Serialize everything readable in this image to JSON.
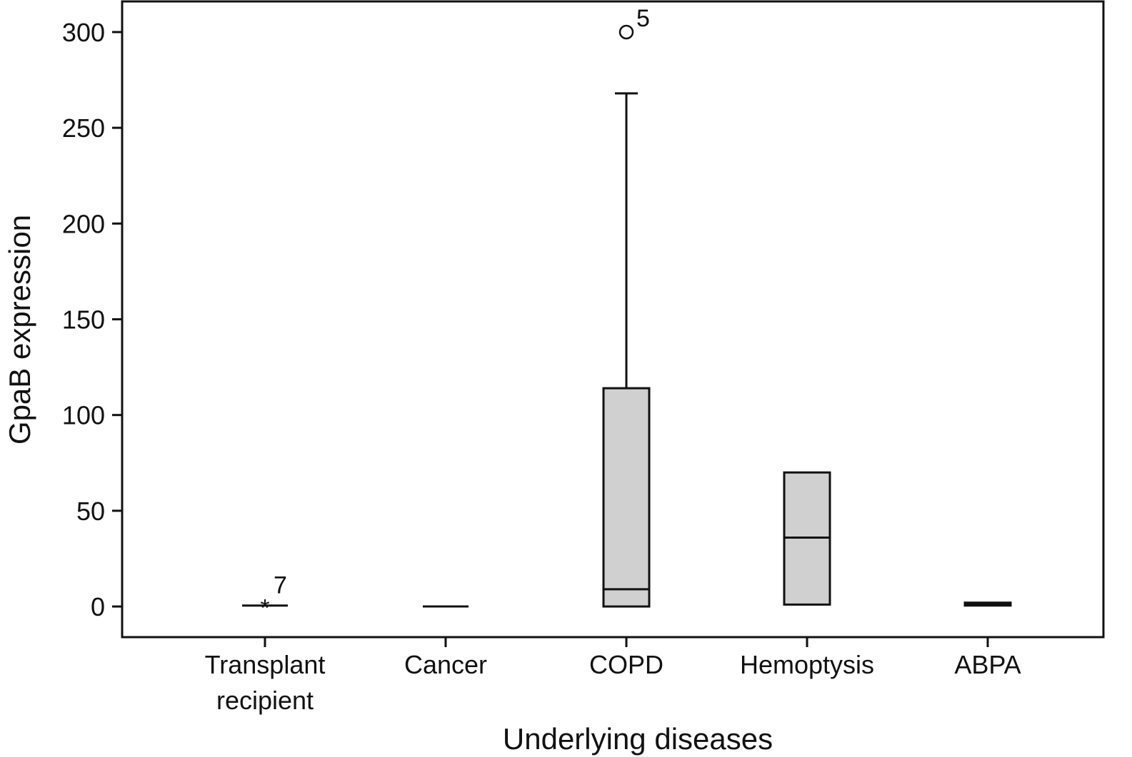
{
  "chart_data": {
    "type": "box",
    "xlabel": "Underlying diseases",
    "ylabel": "GpaB expression",
    "ylim": [
      -16,
      316
    ],
    "yticks": [
      0,
      50,
      100,
      150,
      200,
      250,
      300
    ],
    "grid": false,
    "categories": [
      {
        "label_lines": [
          "Transplant",
          "recipient"
        ]
      },
      {
        "label_lines": [
          "Cancer"
        ]
      },
      {
        "label_lines": [
          "COPD"
        ]
      },
      {
        "label_lines": [
          "Hemoptysis"
        ]
      },
      {
        "label_lines": [
          "ABPA"
        ]
      }
    ],
    "series": [
      {
        "category": "Transplant recipient",
        "min": 0.5,
        "q1": 0.5,
        "median": 0.5,
        "q3": 0.5,
        "max": 0.5,
        "outliers": [
          {
            "value": 2.5,
            "marker": "*",
            "label": "7"
          }
        ]
      },
      {
        "category": "Cancer",
        "min": 0,
        "q1": 0,
        "median": 0,
        "q3": 0,
        "max": 0,
        "outliers": []
      },
      {
        "category": "COPD",
        "min": 0,
        "q1": 0,
        "median": 9,
        "q3": 114,
        "max": 268,
        "outliers": [
          {
            "value": 300,
            "marker": "o",
            "label": "5"
          }
        ]
      },
      {
        "category": "Hemoptysis",
        "min": 1,
        "q1": 1,
        "median": 36,
        "q3": 70,
        "max": 70,
        "outliers": []
      },
      {
        "category": "ABPA",
        "min": 0.5,
        "q1": 0.5,
        "median": 1,
        "q3": 2,
        "max": 2,
        "outliers": []
      }
    ]
  }
}
